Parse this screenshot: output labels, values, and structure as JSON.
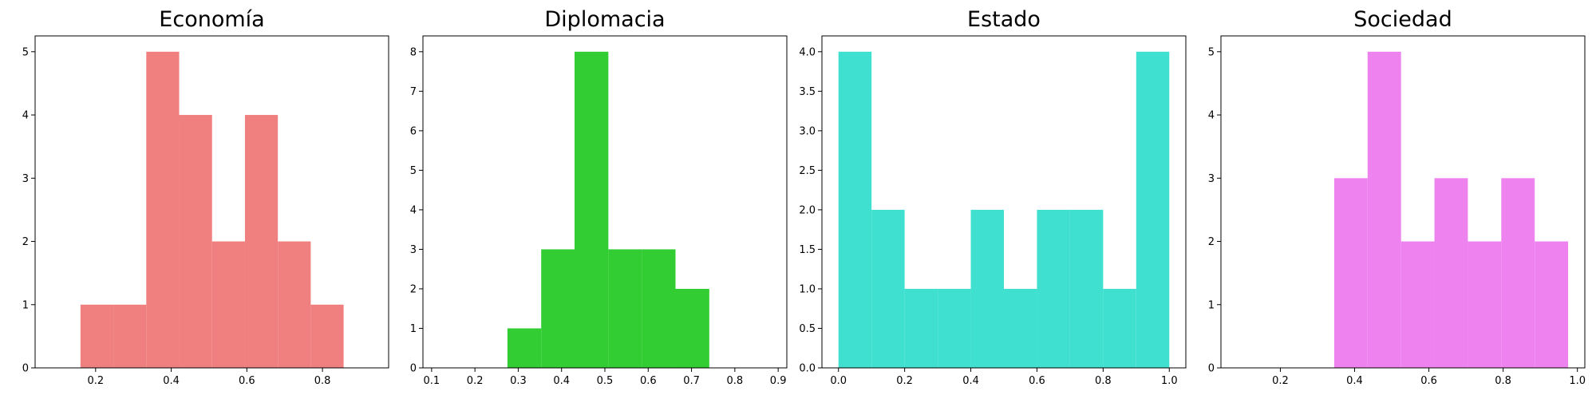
{
  "chart_data": [
    {
      "type": "bar",
      "title": "Economía",
      "color": "#f08080",
      "bin_edges": [
        0.16,
        0.247,
        0.334,
        0.421,
        0.508,
        0.595,
        0.682,
        0.769,
        0.856
      ],
      "values": [
        1,
        1,
        5,
        4,
        2,
        4,
        2,
        1
      ],
      "xlim": [
        0.04,
        0.975
      ],
      "ylim": [
        0,
        5.25
      ],
      "xticks": [
        0.2,
        0.4,
        0.6,
        0.8
      ],
      "xtick_labels": [
        "0.2",
        "0.4",
        "0.6",
        "0.8"
      ],
      "yticks": [
        0,
        1,
        2,
        3,
        4,
        5
      ],
      "ytick_labels": [
        "0",
        "1",
        "2",
        "3",
        "4",
        "5"
      ],
      "xlabel": "",
      "ylabel": ""
    },
    {
      "type": "bar",
      "title": "Diplomacia",
      "color": "#32cd32",
      "bin_edges": [
        0.275,
        0.353,
        0.43,
        0.508,
        0.585,
        0.663,
        0.741
      ],
      "values": [
        1,
        3,
        8,
        3,
        3,
        2
      ],
      "xlim": [
        0.08,
        0.92
      ],
      "ylim": [
        0,
        8.4
      ],
      "xticks": [
        0.1,
        0.2,
        0.3,
        0.4,
        0.5,
        0.6,
        0.7,
        0.8,
        0.9
      ],
      "xtick_labels": [
        "0.1",
        "0.2",
        "0.3",
        "0.4",
        "0.5",
        "0.6",
        "0.7",
        "0.8",
        "0.9"
      ],
      "yticks": [
        0,
        1,
        2,
        3,
        4,
        5,
        6,
        7,
        8
      ],
      "ytick_labels": [
        "0",
        "1",
        "2",
        "3",
        "4",
        "5",
        "6",
        "7",
        "8"
      ],
      "xlabel": "",
      "ylabel": ""
    },
    {
      "type": "bar",
      "title": "Estado",
      "color": "#40e0d0",
      "bin_edges": [
        0.0,
        0.1,
        0.2,
        0.3,
        0.4,
        0.5,
        0.6,
        0.7,
        0.8,
        0.9,
        1.0
      ],
      "values": [
        4,
        2,
        1,
        1,
        2,
        1,
        2,
        2,
        1,
        4
      ],
      "xlim": [
        -0.05,
        1.05
      ],
      "ylim": [
        0,
        4.2
      ],
      "xticks": [
        0.0,
        0.2,
        0.4,
        0.6,
        0.8,
        1.0
      ],
      "xtick_labels": [
        "0.0",
        "0.2",
        "0.4",
        "0.6",
        "0.8",
        "1.0"
      ],
      "yticks": [
        0,
        0.5,
        1,
        1.5,
        2,
        2.5,
        3,
        3.5,
        4
      ],
      "ytick_labels": [
        "0.0",
        "0.5",
        "1.0",
        "1.5",
        "2.0",
        "2.5",
        "3.0",
        "3.5",
        "4.0"
      ],
      "xlabel": "",
      "ylabel": ""
    },
    {
      "type": "bar",
      "title": "Sociedad",
      "color": "#ee82ee",
      "bin_edges": [
        0.345,
        0.435,
        0.525,
        0.615,
        0.705,
        0.795,
        0.885,
        0.975
      ],
      "values": [
        3,
        5,
        2,
        3,
        2,
        3,
        2
      ],
      "xlim": [
        0.04,
        1.02
      ],
      "ylim": [
        0,
        5.25
      ],
      "xticks": [
        0.2,
        0.4,
        0.6,
        0.8,
        1.0
      ],
      "xtick_labels": [
        "0.2",
        "0.4",
        "0.6",
        "0.8",
        "1.0"
      ],
      "yticks": [
        0,
        1,
        2,
        3,
        4,
        5
      ],
      "ytick_labels": [
        "0",
        "1",
        "2",
        "3",
        "4",
        "5"
      ],
      "xlabel": "",
      "ylabel": ""
    }
  ]
}
